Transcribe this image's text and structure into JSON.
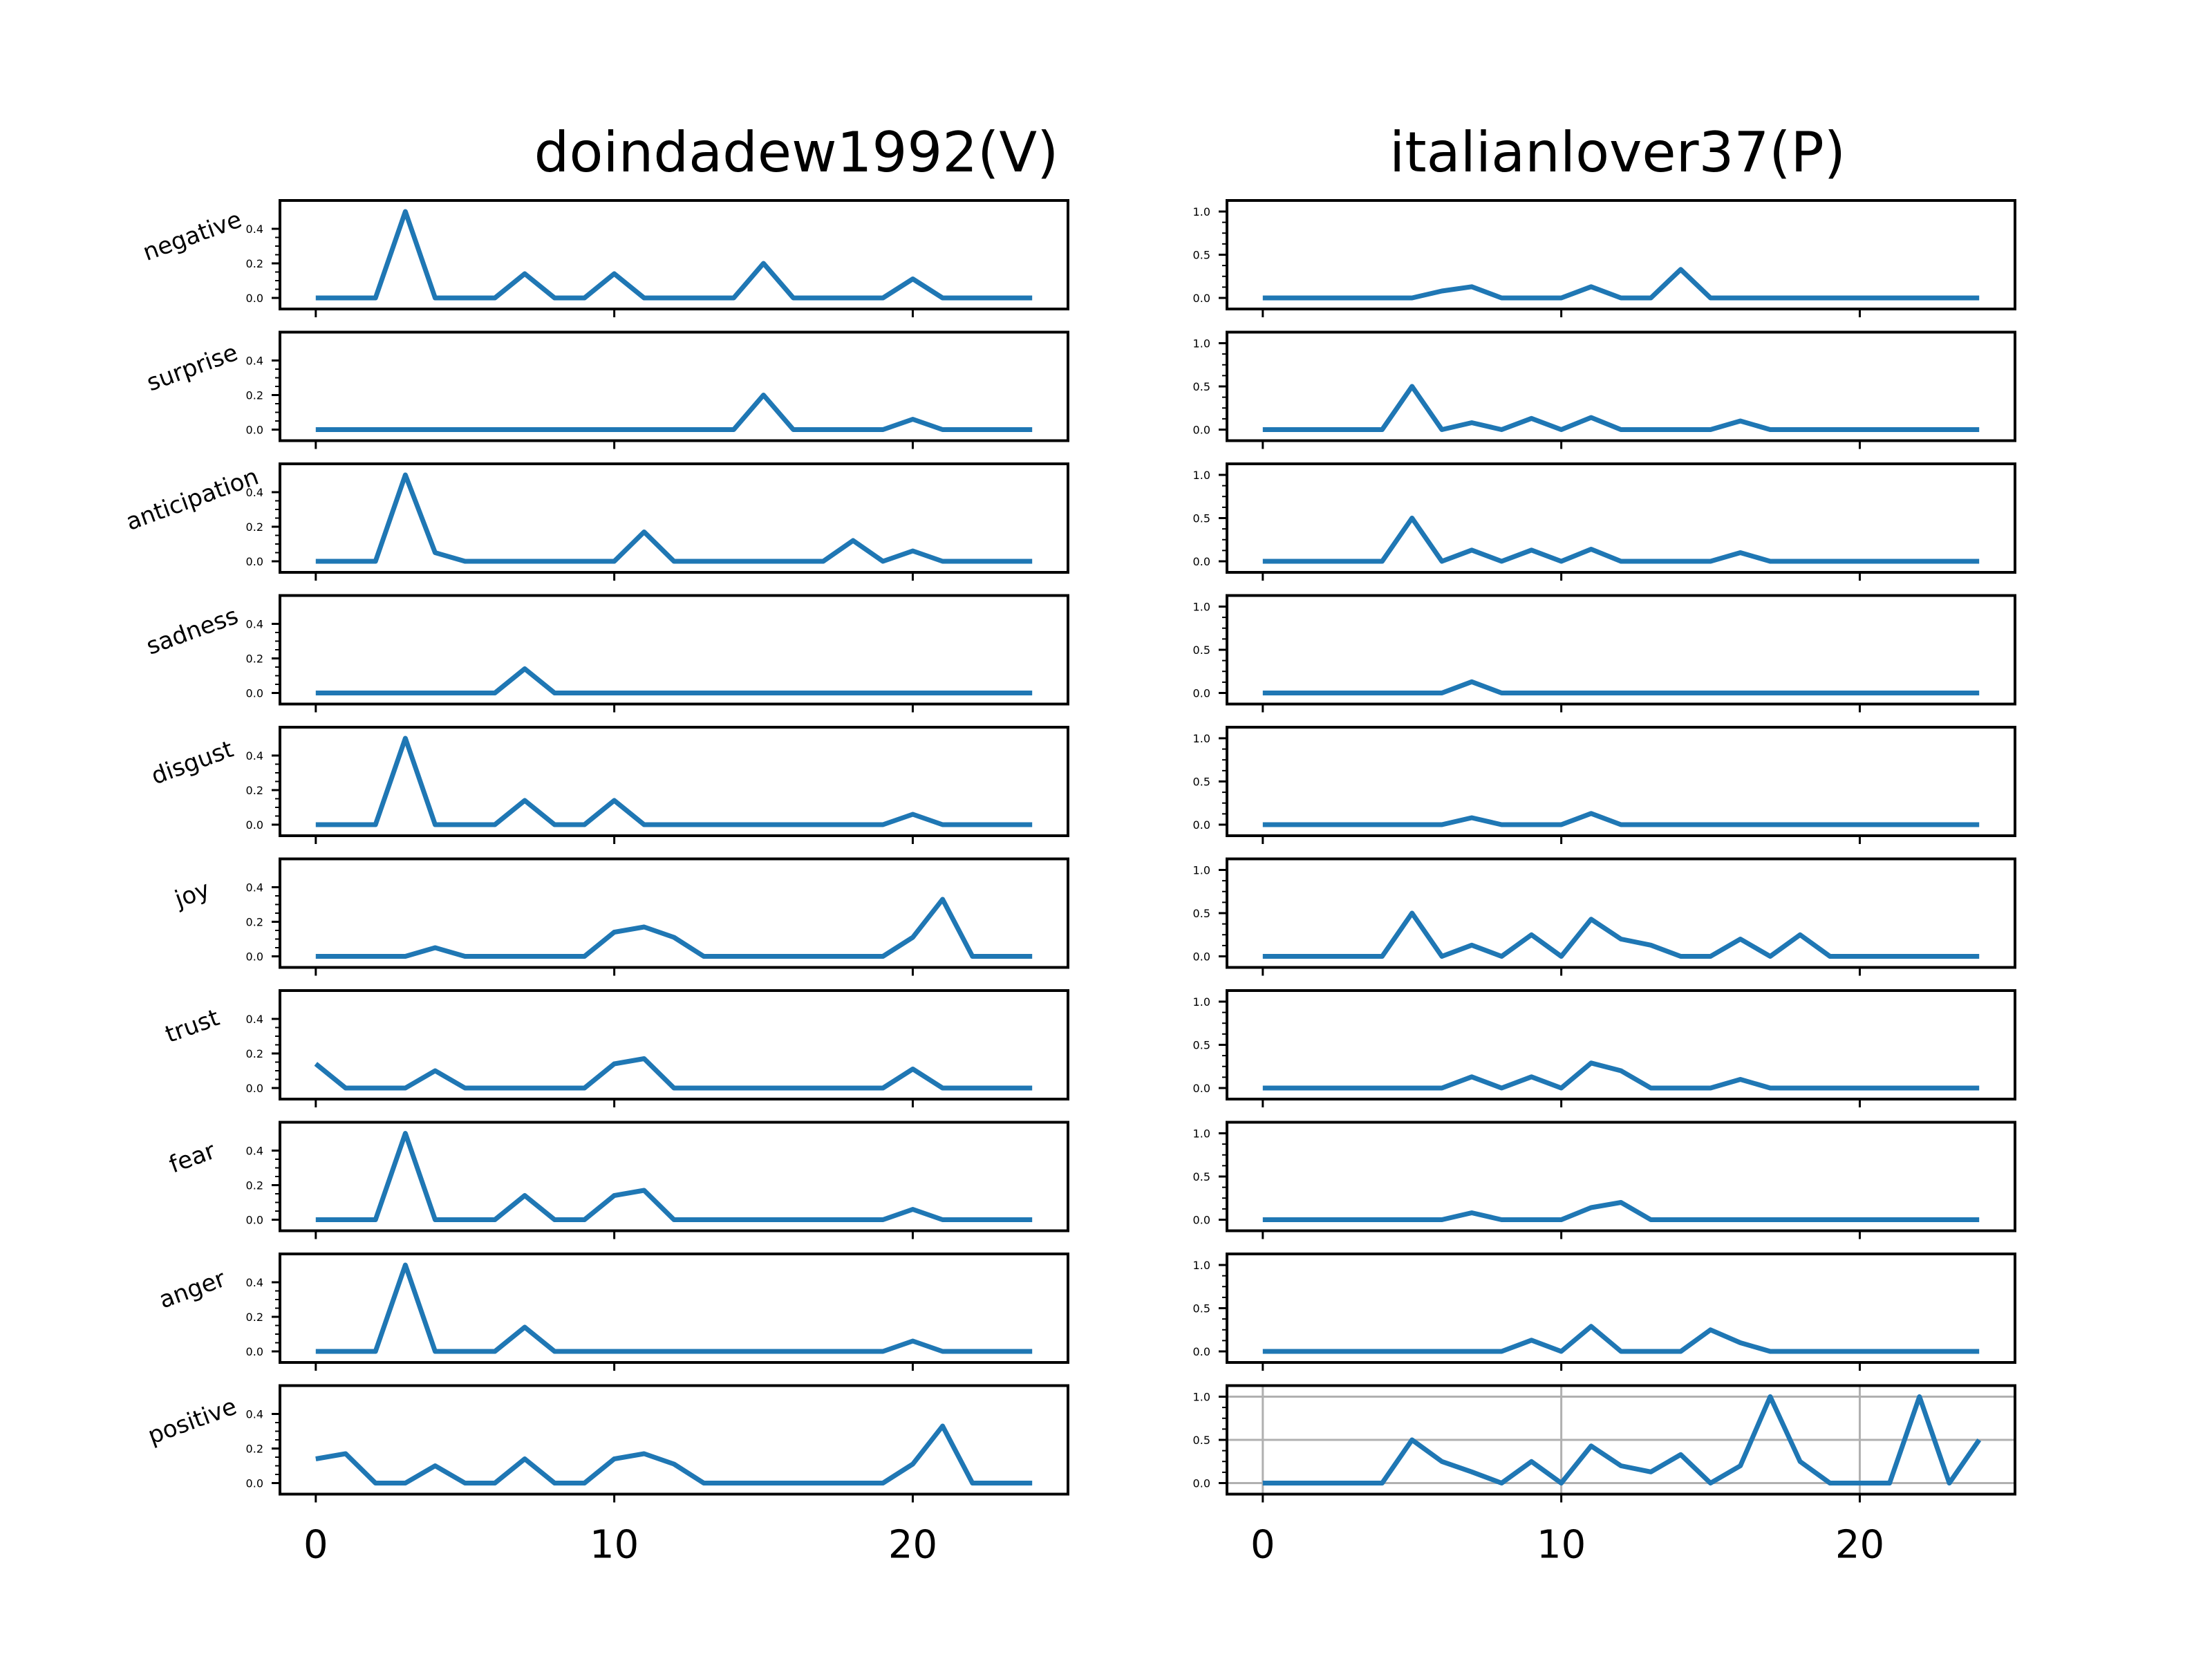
{
  "chart_data": {
    "type": "line",
    "columns": [
      {
        "title": "doindadew1992(V)"
      },
      {
        "title": "italianlover37(P)"
      }
    ],
    "rows": [
      {
        "label": "negative",
        "left": {
          "yticks": [
            "0.0",
            "0.2",
            "0.4"
          ],
          "ylim": [
            0,
            0.5
          ],
          "values": [
            0,
            0,
            0,
            0.5,
            0,
            0,
            0,
            0.14,
            0,
            0,
            0.14,
            0,
            0,
            0,
            0,
            0.2,
            0,
            0,
            0,
            0,
            0.11,
            0,
            0,
            0,
            0
          ]
        },
        "right": {
          "yticks": [
            "0.0",
            "0.5",
            "1.0"
          ],
          "ylim": [
            0,
            1.0
          ],
          "values": [
            0,
            0,
            0,
            0,
            0,
            0,
            0.08,
            0.13,
            0,
            0,
            0,
            0.13,
            0,
            0,
            0.33,
            0,
            0,
            0,
            0,
            0,
            0,
            0,
            0,
            0,
            0
          ]
        }
      },
      {
        "label": "surprise",
        "left": {
          "yticks": [
            "0.0",
            "0.2",
            "0.4"
          ],
          "ylim": [
            0,
            0.5
          ],
          "values": [
            0,
            0,
            0,
            0,
            0,
            0,
            0,
            0,
            0,
            0,
            0,
            0,
            0,
            0,
            0,
            0.2,
            0,
            0,
            0,
            0,
            0.06,
            0,
            0,
            0,
            0
          ]
        },
        "right": {
          "yticks": [
            "0.0",
            "0.5",
            "1.0"
          ],
          "ylim": [
            0,
            1.0
          ],
          "values": [
            0,
            0,
            0,
            0,
            0,
            0.5,
            0,
            0.08,
            0,
            0.13,
            0,
            0.14,
            0,
            0,
            0,
            0,
            0.1,
            0,
            0,
            0,
            0,
            0,
            0,
            0,
            0
          ]
        }
      },
      {
        "label": "anticipation",
        "left": {
          "yticks": [
            "0.0",
            "0.2",
            "0.4"
          ],
          "ylim": [
            0,
            0.5
          ],
          "values": [
            0,
            0,
            0,
            0.5,
            0.05,
            0,
            0,
            0,
            0,
            0,
            0,
            0.17,
            0,
            0,
            0,
            0,
            0,
            0,
            0.12,
            0,
            0.06,
            0,
            0,
            0,
            0
          ]
        },
        "right": {
          "yticks": [
            "0.0",
            "0.5",
            "1.0"
          ],
          "ylim": [
            0,
            1.0
          ],
          "values": [
            0,
            0,
            0,
            0,
            0,
            0.5,
            0,
            0.13,
            0,
            0.13,
            0,
            0.14,
            0,
            0,
            0,
            0,
            0.1,
            0,
            0,
            0,
            0,
            0,
            0,
            0,
            0
          ]
        }
      },
      {
        "label": "sadness",
        "left": {
          "yticks": [
            "0.0",
            "0.2",
            "0.4"
          ],
          "ylim": [
            0,
            0.5
          ],
          "values": [
            0,
            0,
            0,
            0,
            0,
            0,
            0,
            0.14,
            0,
            0,
            0,
            0,
            0,
            0,
            0,
            0,
            0,
            0,
            0,
            0,
            0,
            0,
            0,
            0,
            0
          ]
        },
        "right": {
          "yticks": [
            "0.0",
            "0.5",
            "1.0"
          ],
          "ylim": [
            0,
            1.0
          ],
          "values": [
            0,
            0,
            0,
            0,
            0,
            0,
            0,
            0.13,
            0,
            0,
            0,
            0,
            0,
            0,
            0,
            0,
            0,
            0,
            0,
            0,
            0,
            0,
            0,
            0,
            0
          ]
        }
      },
      {
        "label": "disgust",
        "left": {
          "yticks": [
            "0.0",
            "0.2",
            "0.4"
          ],
          "ylim": [
            0,
            0.5
          ],
          "values": [
            0,
            0,
            0,
            0.5,
            0,
            0,
            0,
            0.14,
            0,
            0,
            0.14,
            0,
            0,
            0,
            0,
            0,
            0,
            0,
            0,
            0,
            0.06,
            0,
            0,
            0,
            0
          ]
        },
        "right": {
          "yticks": [
            "0.0",
            "0.5",
            "1.0"
          ],
          "ylim": [
            0,
            1.0
          ],
          "values": [
            0,
            0,
            0,
            0,
            0,
            0,
            0,
            0.08,
            0,
            0,
            0,
            0.13,
            0,
            0,
            0,
            0,
            0,
            0,
            0,
            0,
            0,
            0,
            0,
            0,
            0
          ]
        }
      },
      {
        "label": "joy",
        "left": {
          "yticks": [
            "0.0",
            "0.2",
            "0.4"
          ],
          "ylim": [
            0,
            0.5
          ],
          "values": [
            0,
            0,
            0,
            0,
            0.05,
            0,
            0,
            0,
            0,
            0,
            0.14,
            0.17,
            0.11,
            0,
            0,
            0,
            0,
            0,
            0,
            0,
            0.11,
            0.33,
            0,
            0,
            0
          ]
        },
        "right": {
          "yticks": [
            "0.0",
            "0.5",
            "1.0"
          ],
          "ylim": [
            0,
            1.0
          ],
          "values": [
            0,
            0,
            0,
            0,
            0,
            0.5,
            0,
            0.13,
            0,
            0.25,
            0,
            0.43,
            0.2,
            0.13,
            0,
            0,
            0.2,
            0,
            0.25,
            0,
            0,
            0,
            0,
            0,
            0
          ]
        }
      },
      {
        "label": "trust",
        "left": {
          "yticks": [
            "0.0",
            "0.2",
            "0.4"
          ],
          "ylim": [
            0,
            0.5
          ],
          "values": [
            0.14,
            0,
            0,
            0,
            0.1,
            0,
            0,
            0,
            0,
            0,
            0.14,
            0.17,
            0,
            0,
            0,
            0,
            0,
            0,
            0,
            0,
            0.11,
            0,
            0,
            0,
            0
          ]
        },
        "right": {
          "yticks": [
            "0.0",
            "0.5",
            "1.0"
          ],
          "ylim": [
            0,
            1.0
          ],
          "values": [
            0,
            0,
            0,
            0,
            0,
            0,
            0,
            0.13,
            0,
            0.13,
            0,
            0.29,
            0.2,
            0,
            0,
            0,
            0.1,
            0,
            0,
            0,
            0,
            0,
            0,
            0,
            0
          ]
        }
      },
      {
        "label": "fear",
        "left": {
          "yticks": [
            "0.0",
            "0.2",
            "0.4"
          ],
          "ylim": [
            0,
            0.5
          ],
          "values": [
            0,
            0,
            0,
            0.5,
            0,
            0,
            0,
            0.14,
            0,
            0,
            0.14,
            0.17,
            0,
            0,
            0,
            0,
            0,
            0,
            0,
            0,
            0.06,
            0,
            0,
            0,
            0
          ]
        },
        "right": {
          "yticks": [
            "0.0",
            "0.5",
            "1.0"
          ],
          "ylim": [
            0,
            1.0
          ],
          "values": [
            0,
            0,
            0,
            0,
            0,
            0,
            0,
            0.08,
            0,
            0,
            0,
            0.14,
            0.2,
            0,
            0,
            0,
            0,
            0,
            0,
            0,
            0,
            0,
            0,
            0,
            0
          ]
        }
      },
      {
        "label": "anger",
        "left": {
          "yticks": [
            "0.0",
            "0.2",
            "0.4"
          ],
          "ylim": [
            0,
            0.5
          ],
          "values": [
            0,
            0,
            0,
            0.5,
            0,
            0,
            0,
            0.14,
            0,
            0,
            0,
            0,
            0,
            0,
            0,
            0,
            0,
            0,
            0,
            0,
            0.06,
            0,
            0,
            0,
            0
          ]
        },
        "right": {
          "yticks": [
            "0.0",
            "0.5",
            "1.0"
          ],
          "ylim": [
            0,
            1.0
          ],
          "values": [
            0,
            0,
            0,
            0,
            0,
            0,
            0,
            0,
            0,
            0.13,
            0,
            0.29,
            0,
            0,
            0,
            0.25,
            0.1,
            0,
            0,
            0,
            0,
            0,
            0,
            0,
            0
          ]
        }
      },
      {
        "label": "positive",
        "left": {
          "yticks": [
            "0.0",
            "0.2",
            "0.4"
          ],
          "ylim": [
            0,
            0.5
          ],
          "values": [
            0.14,
            0.17,
            0,
            0,
            0.1,
            0,
            0,
            0.14,
            0,
            0,
            0.14,
            0.17,
            0.11,
            0,
            0,
            0,
            0,
            0,
            0,
            0,
            0.11,
            0.33,
            0,
            0,
            0
          ]
        },
        "right": {
          "yticks": [
            "0.0",
            "0.5",
            "1.0"
          ],
          "ylim": [
            0,
            1.0
          ],
          "grid": true,
          "values": [
            0,
            0,
            0,
            0,
            0,
            0.5,
            0.25,
            0.13,
            0,
            0.25,
            0,
            0.43,
            0.2,
            0.13,
            0.33,
            0,
            0.2,
            1.0,
            0.25,
            0,
            0,
            0,
            1.0,
            0,
            0.5
          ]
        }
      }
    ],
    "x": [
      0,
      1,
      2,
      3,
      4,
      5,
      6,
      7,
      8,
      9,
      10,
      11,
      12,
      13,
      14,
      15,
      16,
      17,
      18,
      19,
      20,
      21,
      22,
      23,
      24
    ],
    "xlim": [
      -1.2,
      25.2
    ],
    "xticks": [
      "0",
      "10",
      "20"
    ],
    "colors": {
      "series": "#1f77b4",
      "grid": "#b0b0b0"
    }
  }
}
